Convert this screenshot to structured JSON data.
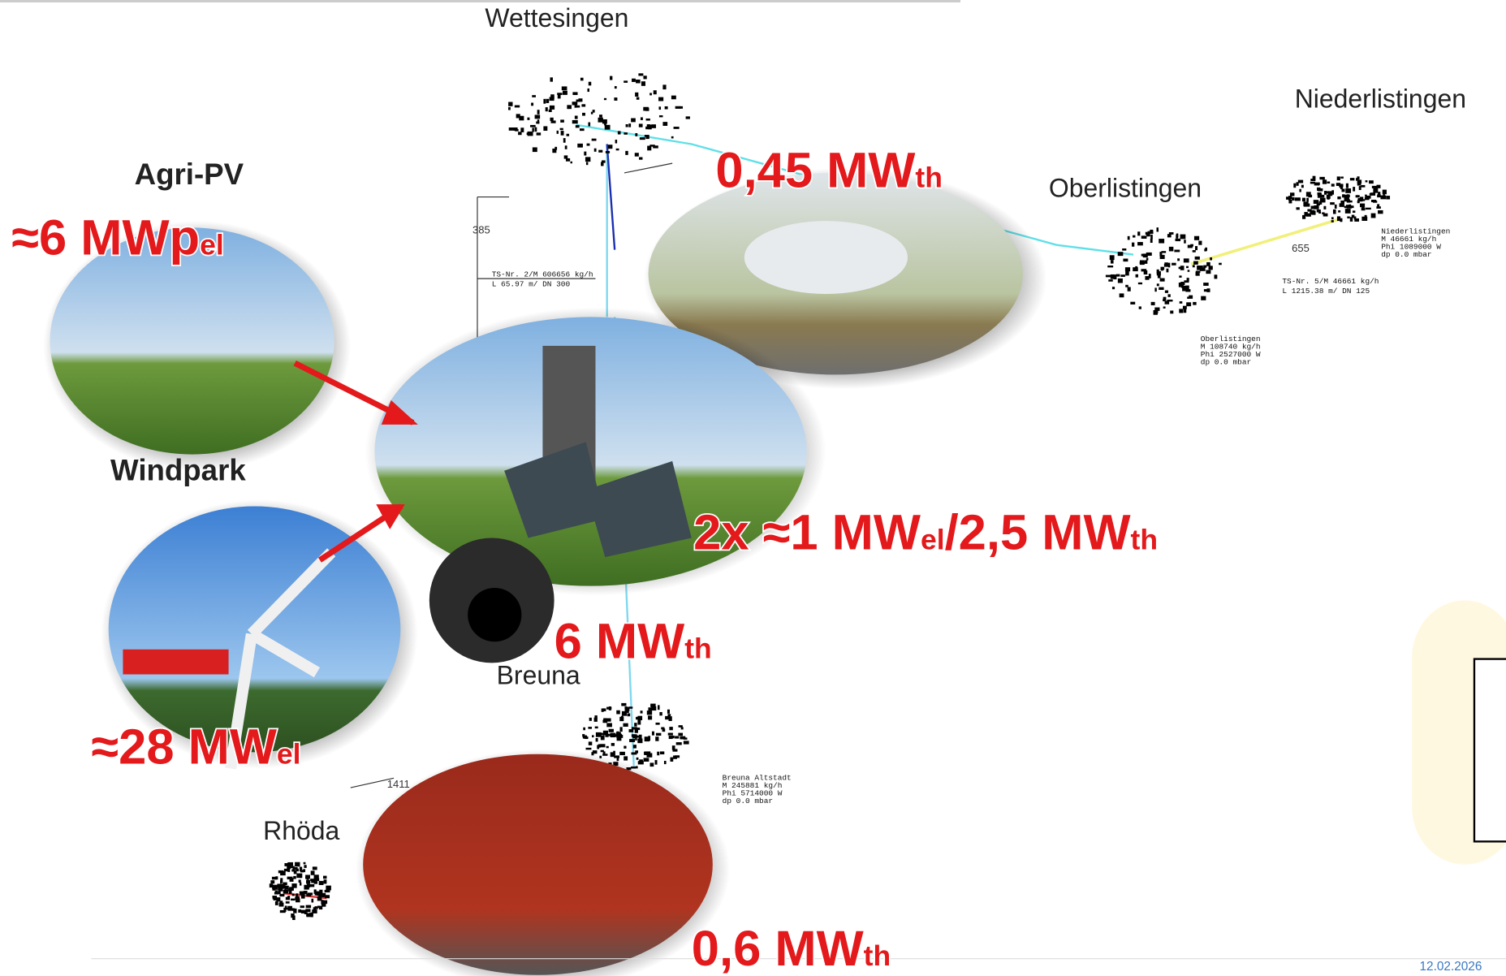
{
  "places": [
    "Wettesingen",
    "Niederlistingen",
    "Oberlistingen",
    "Breuna",
    "Rhöda"
  ],
  "sources": [
    "Agri-PV",
    "Windpark"
  ],
  "power_labels": [
    [
      {
        "text": "0,45 MW"
      },
      {
        "text": "th",
        "sub": true
      }
    ],
    [
      {
        "text": "≈6 MWp"
      },
      {
        "text": "el",
        "sub": true
      }
    ],
    [
      {
        "text": "2x ≈1 MW"
      },
      {
        "text": "el",
        "sub": true
      },
      {
        "text": "/2,5 MW"
      },
      {
        "text": "th",
        "sub": true
      }
    ],
    [
      {
        "text": "6 MW"
      },
      {
        "text": "th",
        "sub": true
      }
    ],
    [
      {
        "text": "≈28 MW"
      },
      {
        "text": "el",
        "sub": true
      }
    ],
    [
      {
        "text": "0,6 MW"
      },
      {
        "text": "th",
        "sub": true
      }
    ]
  ],
  "map_notes": [
    "385",
    "655",
    "1411",
    "TS-Nr. 2/M 606656 kg/h",
    "L 65.97 m/ DN 300",
    "TS-Nr. 5/M 46661 kg/h",
    "L 1215.38 m/ DN 125",
    "Niederlistingen",
    "M 46661 kg/h",
    "Phi 1089000 W",
    "dp 0.0 mbar",
    "Oberlistingen",
    "M 108740 kg/h",
    "Phi 2527000 W",
    "dp 0.0 mbar",
    "Breuna Altstadt",
    "M 245881 kg/h",
    "Phi 5714000 W",
    "dp 0.0 mbar"
  ],
  "footer": {
    "date": "12.02.2026"
  }
}
